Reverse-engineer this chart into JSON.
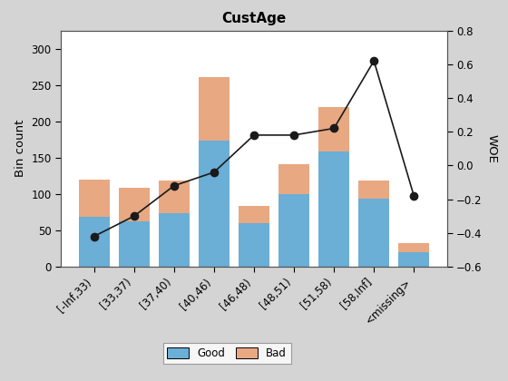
{
  "categories": [
    "[-Inf,33)",
    "[33,37)",
    "[37,40)",
    "[40,46)",
    "[46,48)",
    "[48,51)",
    "[51,58)",
    "[58,Inf]",
    "<missing>"
  ],
  "good_values": [
    69,
    63,
    74,
    173,
    60,
    100,
    158,
    94,
    20
  ],
  "bad_values": [
    51,
    45,
    45,
    88,
    23,
    41,
    62,
    24,
    12
  ],
  "woe_values": [
    -0.42,
    -0.3,
    -0.12,
    -0.04,
    0.18,
    0.18,
    0.22,
    0.62,
    -0.18
  ],
  "good_color": "#6BAED6",
  "bad_color": "#E8A882",
  "line_color": "#1a1a1a",
  "title": "CustAge",
  "ylabel_left": "Bin count",
  "ylabel_right": "WOE",
  "ylim_left": [
    0,
    325
  ],
  "ylim_right": [
    -0.6,
    0.8
  ],
  "yticks_left": [
    0,
    50,
    100,
    150,
    200,
    250,
    300
  ],
  "yticks_right": [
    -0.6,
    -0.4,
    -0.2,
    0.0,
    0.2,
    0.4,
    0.6,
    0.8
  ],
  "legend_labels": [
    "Good",
    "Bad"
  ],
  "bg_color": "#D4D4D4",
  "axes_bg_color": "#FFFFFF",
  "title_fontsize": 11,
  "label_fontsize": 9.5,
  "tick_fontsize": 8.5
}
